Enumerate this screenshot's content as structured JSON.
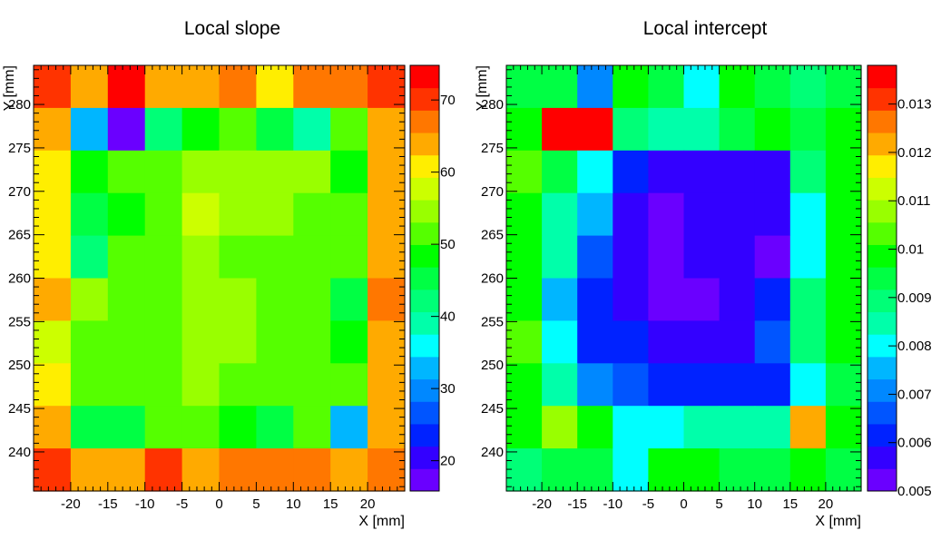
{
  "chart_data": [
    {
      "type": "heatmap",
      "title": "Local slope",
      "xlabel": "X [mm]",
      "ylabel": "Y [mm]",
      "x_range": [
        -25,
        25
      ],
      "y_range": [
        235.5,
        284.5
      ],
      "x_ticks": [
        -20,
        -15,
        -10,
        -5,
        0,
        5,
        10,
        15,
        20
      ],
      "y_ticks": [
        240,
        245,
        250,
        255,
        260,
        265,
        270,
        275,
        280
      ],
      "z_range": [
        15.8,
        74.8
      ],
      "z_ticks": [
        20,
        30,
        40,
        50,
        60,
        70
      ],
      "z_tick_labels": [
        "20",
        "30",
        "40",
        "50",
        "60",
        "70"
      ],
      "grid": false,
      "values": [
        [
          69,
          65,
          74,
          65,
          65,
          67,
          60,
          67,
          67,
          70
        ],
        [
          65,
          32,
          18,
          43,
          48,
          50,
          45,
          38,
          53,
          65
        ],
        [
          60,
          48,
          51,
          51,
          55,
          55,
          55,
          55,
          48,
          65
        ],
        [
          60,
          45,
          48,
          52,
          58,
          55,
          55,
          53,
          53,
          65
        ],
        [
          60,
          42,
          50,
          52,
          55,
          53,
          53,
          53,
          53,
          65
        ],
        [
          65,
          55,
          50,
          52,
          55,
          55,
          53,
          50,
          45,
          67
        ],
        [
          58,
          50,
          50,
          52,
          55,
          55,
          53,
          50,
          48,
          65
        ],
        [
          60,
          53,
          50,
          50,
          55,
          53,
          53,
          53,
          53,
          65
        ],
        [
          65,
          45,
          45,
          52,
          52,
          48,
          45,
          50,
          32,
          65
        ],
        [
          70,
          65,
          65,
          70,
          65,
          67,
          67,
          67,
          65,
          67
        ]
      ]
    },
    {
      "type": "heatmap",
      "title": "Local intercept",
      "xlabel": "X [mm]",
      "ylabel": "Y [mm]",
      "x_range": [
        -25,
        25
      ],
      "y_range": [
        235.5,
        284.5
      ],
      "x_ticks": [
        -20,
        -15,
        -10,
        -5,
        0,
        5,
        10,
        15,
        20
      ],
      "y_ticks": [
        240,
        245,
        250,
        255,
        260,
        265,
        270,
        275,
        280
      ],
      "z_range": [
        0.005,
        0.0138
      ],
      "z_ticks": [
        0.006,
        0.007,
        0.008,
        0.009,
        0.01,
        0.011,
        0.012,
        0.013
      ],
      "z_tick_labels": [
        "0.006",
        "0.007",
        "0.008",
        "0.009",
        "0.01",
        "0.011",
        "0.012",
        "0.013"
      ],
      "z_bottom_label": "0.005",
      "grid": false,
      "values": [
        [
          0.0092,
          0.0092,
          0.0072,
          0.0098,
          0.0092,
          0.0082,
          0.0098,
          0.0092,
          0.0088,
          0.0092
        ],
        [
          0.0098,
          0.0136,
          0.0136,
          0.0088,
          0.0085,
          0.0085,
          0.0092,
          0.0098,
          0.0092,
          0.0098
        ],
        [
          0.0104,
          0.0092,
          0.008,
          0.0062,
          0.0056,
          0.0056,
          0.0056,
          0.0058,
          0.009,
          0.0098
        ],
        [
          0.0098,
          0.0085,
          0.0075,
          0.0056,
          0.0054,
          0.0056,
          0.0056,
          0.0058,
          0.008,
          0.0098
        ],
        [
          0.0098,
          0.0085,
          0.0065,
          0.0056,
          0.0054,
          0.0056,
          0.0056,
          0.0054,
          0.008,
          0.0098
        ],
        [
          0.0098,
          0.0075,
          0.006,
          0.0056,
          0.0052,
          0.0052,
          0.0056,
          0.006,
          0.009,
          0.0098
        ],
        [
          0.0104,
          0.008,
          0.006,
          0.006,
          0.0056,
          0.0056,
          0.0056,
          0.0065,
          0.0088,
          0.0098
        ],
        [
          0.0098,
          0.0085,
          0.007,
          0.0065,
          0.006,
          0.006,
          0.006,
          0.006,
          0.008,
          0.0092
        ],
        [
          0.0098,
          0.0108,
          0.0098,
          0.008,
          0.008,
          0.0085,
          0.0085,
          0.0085,
          0.0124,
          0.0098
        ],
        [
          0.009,
          0.0092,
          0.0092,
          0.008,
          0.0098,
          0.0098,
          0.0092,
          0.0092,
          0.0098,
          0.0092
        ]
      ]
    }
  ],
  "palette": [
    "#6a00ff",
    "#3300ff",
    "#0022ff",
    "#0055ff",
    "#0088ff",
    "#00b6ff",
    "#00ffff",
    "#00ffaa",
    "#00ff77",
    "#00ff44",
    "#00ff00",
    "#55ff00",
    "#99ff00",
    "#ccff00",
    "#ffee00",
    "#ffaa00",
    "#ff7700",
    "#ff3300",
    "#ff0000"
  ]
}
